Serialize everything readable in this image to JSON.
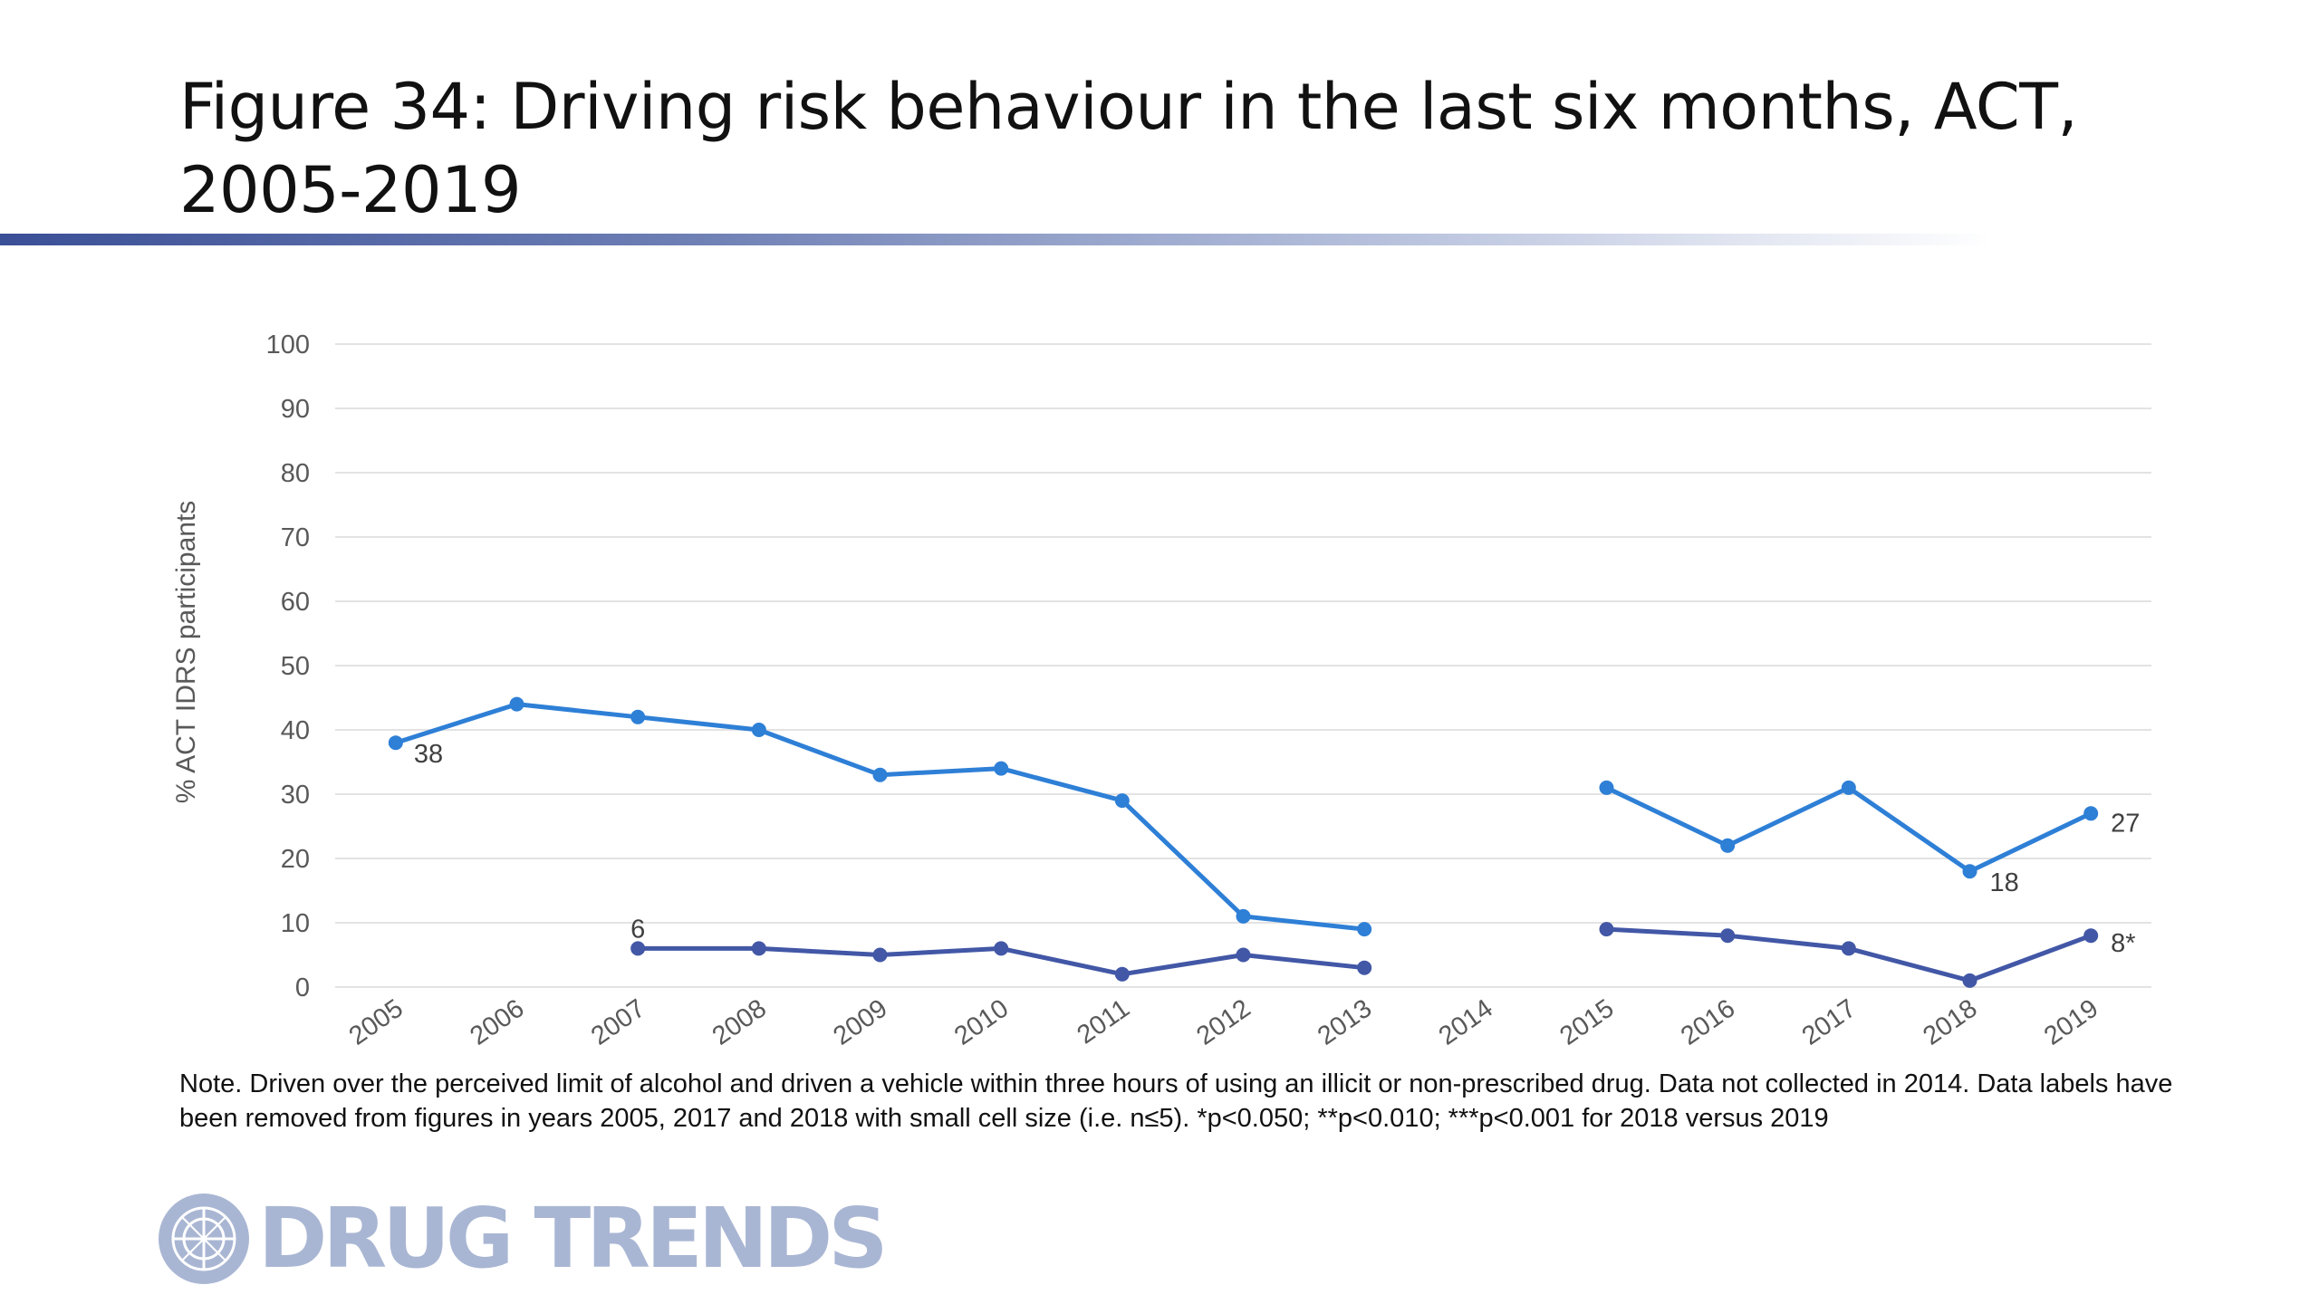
{
  "title": "Figure 34: Driving risk behaviour in the last six months, ACT, 2005-2019",
  "note": "Note. Driven over the perceived limit of alcohol and driven a vehicle within three hours of using an illicit or non-prescribed drug. Data not collected in 2014. Data labels have been removed from figures in years 2005, 2017 and 2018 with small cell size (i.e. n≤5). *p<0.050; **p<0.010; ***p<0.001 for 2018 versus 2019",
  "logo_text": "DRUG TRENDS",
  "colors": {
    "series1": "#2e7fd6",
    "series2": "#4257a6",
    "gridline": "#e3e3e3",
    "axis_text": "#595959",
    "logo": "#a9b6d3"
  },
  "chart_data": {
    "type": "line",
    "ylabel": "% ACT IDRS participants",
    "xlabel": "",
    "ylim": [
      0,
      100
    ],
    "yticks": [
      "0",
      "10",
      "20",
      "30",
      "40",
      "50",
      "60",
      "70",
      "80",
      "90",
      "100"
    ],
    "categories": [
      "2005",
      "2006",
      "2007",
      "2008",
      "2009",
      "2010",
      "2011",
      "2012",
      "2013",
      "2014",
      "2015",
      "2016",
      "2017",
      "2018",
      "2019"
    ],
    "grid": true,
    "legend": "none",
    "series": [
      {
        "values": [
          38,
          44,
          42,
          40,
          33,
          34,
          29,
          11,
          9,
          null,
          31,
          22,
          31,
          18,
          27
        ],
        "data_labels": [
          {
            "index": 0,
            "text": "38"
          },
          {
            "index": 13,
            "text": "18"
          },
          {
            "index": 14,
            "text": "27"
          }
        ]
      },
      {
        "values": [
          null,
          null,
          6,
          6,
          5,
          6,
          2,
          5,
          3,
          null,
          9,
          8,
          6,
          1,
          8
        ],
        "data_labels": [
          {
            "index": 2,
            "text": "6"
          },
          {
            "index": 14,
            "text": "8*"
          }
        ]
      }
    ]
  }
}
